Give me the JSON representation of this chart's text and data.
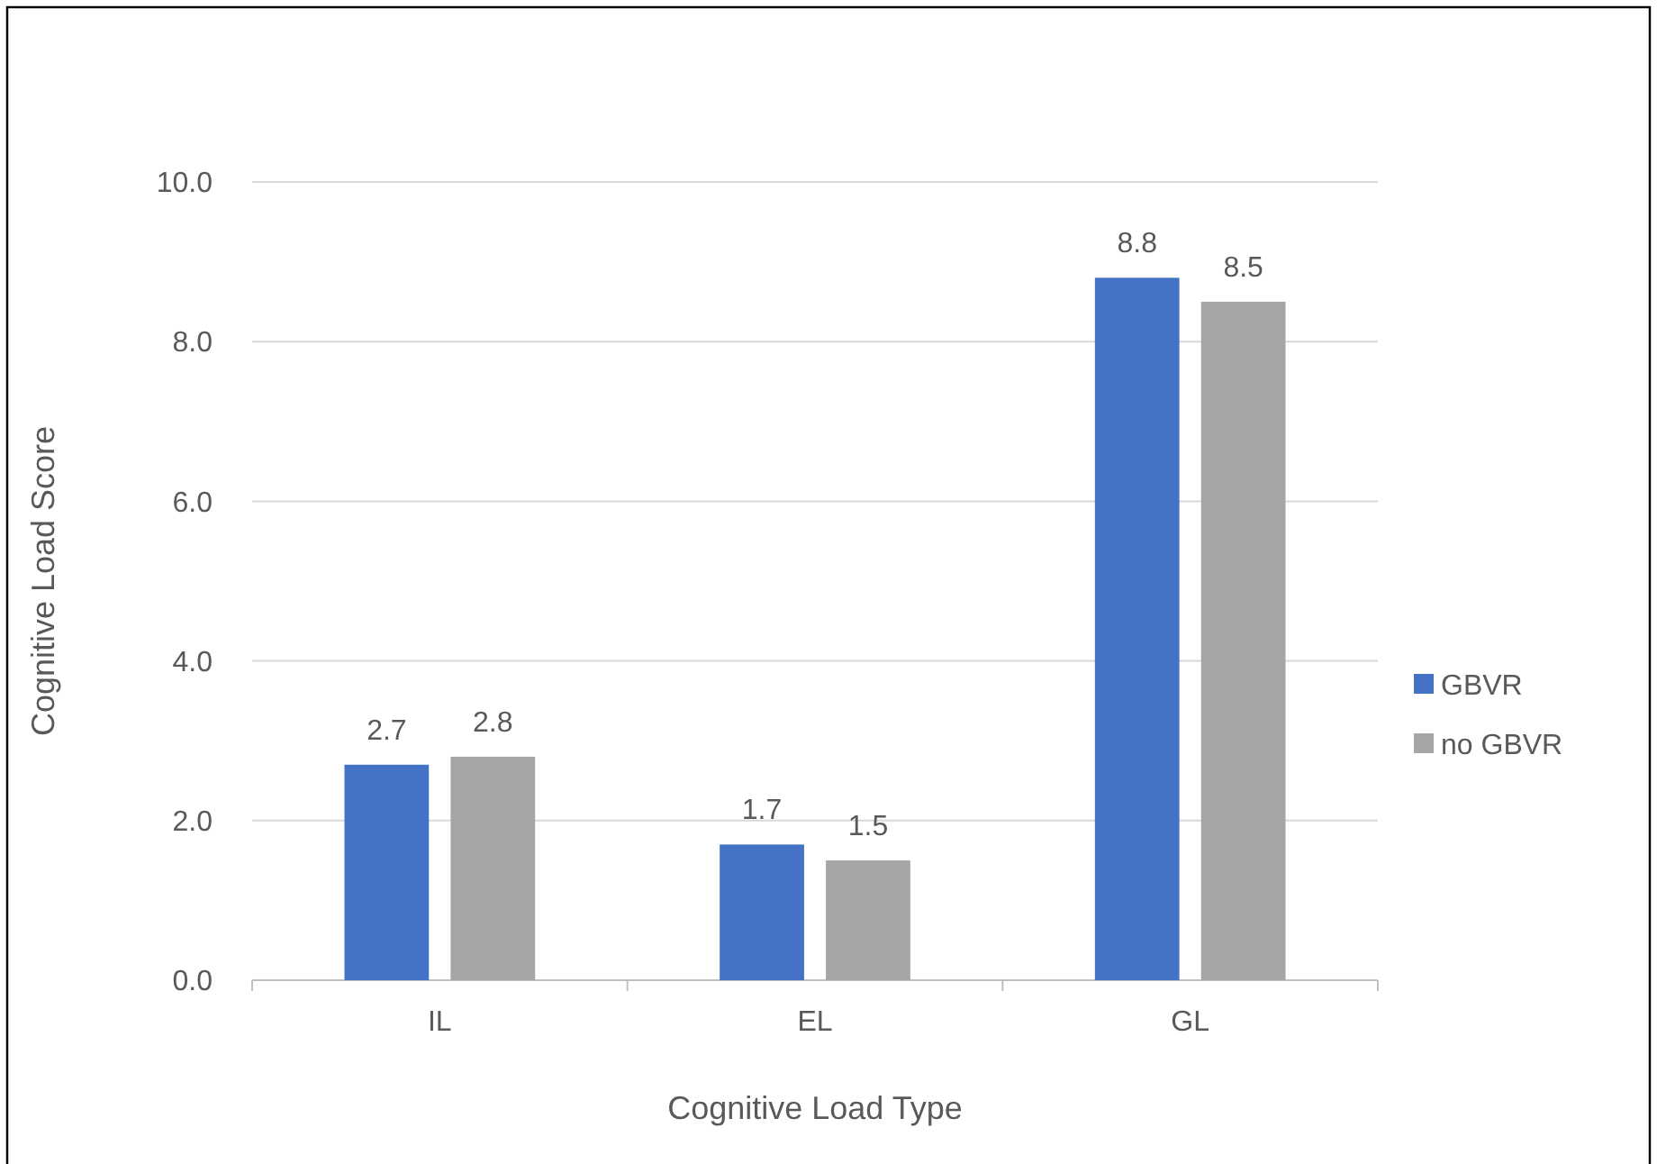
{
  "chart_data": {
    "type": "bar",
    "xlabel": "Cognitive Load Type",
    "ylabel": "Cognitive Load Score",
    "categories": [
      "IL",
      "EL",
      "GL"
    ],
    "series": [
      {
        "name": "GBVR",
        "color": "#4472c4",
        "values": [
          2.7,
          1.7,
          8.8
        ]
      },
      {
        "name": "no GBVR",
        "color": "#a5a5a5",
        "values": [
          2.8,
          1.5,
          8.5
        ]
      }
    ],
    "ylim": [
      0,
      10
    ],
    "yticks": [
      {
        "value": 0,
        "label": "0.0"
      },
      {
        "value": 2,
        "label": "2.0"
      },
      {
        "value": 4,
        "label": "4.0"
      },
      {
        "value": 6,
        "label": "6.0"
      },
      {
        "value": 8,
        "label": "8.0"
      },
      {
        "value": 10,
        "label": "10.0"
      }
    ],
    "grid": "y",
    "legend": "right",
    "data_labels": true
  }
}
